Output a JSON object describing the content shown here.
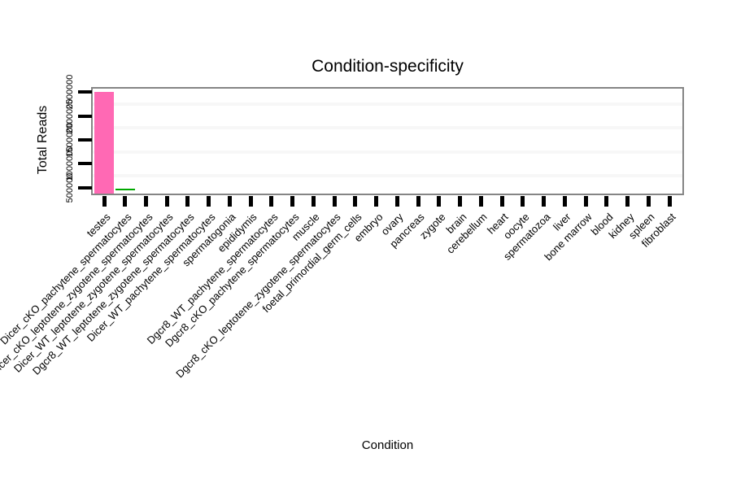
{
  "figure": {
    "background": "#ffffff",
    "frame_color": "#858585",
    "tick_color": "#000000",
    "minor_grid_color": "#f7f7f7"
  },
  "chart_data": {
    "type": "bar",
    "title": "Condition-specificity",
    "xlabel": "Condition",
    "ylabel": "Total Reads",
    "legend": "none",
    "grid": "faint horizontal minor lines between ticks",
    "categories": [
      "testes",
      "Dicer_cKO_pachytene_spermatocytes",
      "Dicer_cKO_leptotene_zygotene_spermatocytes",
      "Dicer_WT_leptotene_zygotene_spermatocytes",
      "Dgcr8_WT_leptotene_zygotene_spermatocytes",
      "Dicer_WT_pachytene_spermatocytes",
      "spermatogonia",
      "epididymis",
      "Dgcr8_WT_pachytene_spermatocytes",
      "Dgcr8_cKO_pachytene_spermatocytes",
      "muscle",
      "Dgcr8_cKO_leptotene_zygotene_spermatocytes",
      "foetal_primordial_germ_cells",
      "embryo",
      "ovary",
      "pancreas",
      "zygote",
      "brain",
      "cerebellum",
      "heart",
      "oocyte",
      "spermatozoa",
      "liver",
      "bone marrow",
      "blood",
      "kidney",
      "spleen",
      "fibroblast"
    ],
    "values": [
      2500000,
      460000,
      0,
      0,
      0,
      0,
      0,
      0,
      0,
      0,
      0,
      0,
      0,
      0,
      0,
      0,
      0,
      0,
      0,
      0,
      0,
      0,
      0,
      0,
      0,
      0,
      0,
      0
    ],
    "bars": [
      {
        "category": "testes",
        "value": 2500000,
        "color": "#ff69b4",
        "shape": "filled-bar"
      },
      {
        "category": "Dicer_cKO_pachytene_spermatocytes",
        "value": 460000,
        "color": "#00a800",
        "shape": "flat-line"
      }
    ],
    "y_ticks": [
      500000,
      1000000,
      1500000,
      2000000,
      2500000
    ],
    "y_tick_labels": [
      "500000",
      "1000000",
      "1500000",
      "2000000",
      "2500000"
    ],
    "ylim": [
      420000,
      2620000
    ]
  }
}
